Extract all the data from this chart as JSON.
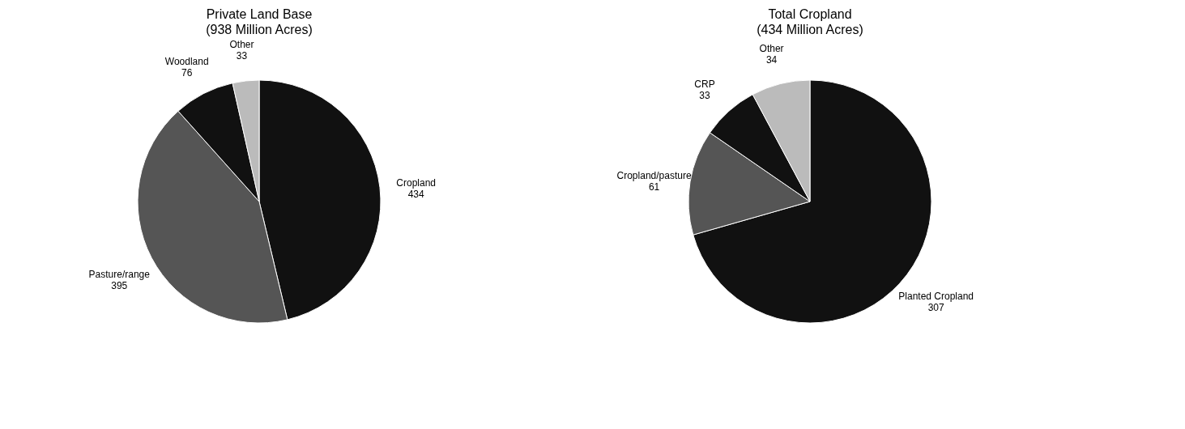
{
  "chart_data": [
    {
      "type": "pie",
      "title": "Private Land Base",
      "subtitle": "(938 Million Acres)",
      "categories": [
        "Cropland",
        "Pasture/range",
        "Woodland",
        "Other"
      ],
      "values": [
        434,
        395,
        76,
        33
      ],
      "colors": [
        "#111111",
        "#555555",
        "#111111",
        "#bbbbbb"
      ],
      "data_labels": true,
      "legend": false
    },
    {
      "type": "pie",
      "title": "Total Cropland",
      "subtitle": "(434 Million Acres)",
      "categories": [
        "Planted Cropland",
        "Cropland/pasture",
        "CRP",
        "Other"
      ],
      "values": [
        307,
        61,
        33,
        34
      ],
      "colors": [
        "#111111",
        "#555555",
        "#111111",
        "#bbbbbb"
      ],
      "data_labels": true,
      "legend": false
    }
  ]
}
